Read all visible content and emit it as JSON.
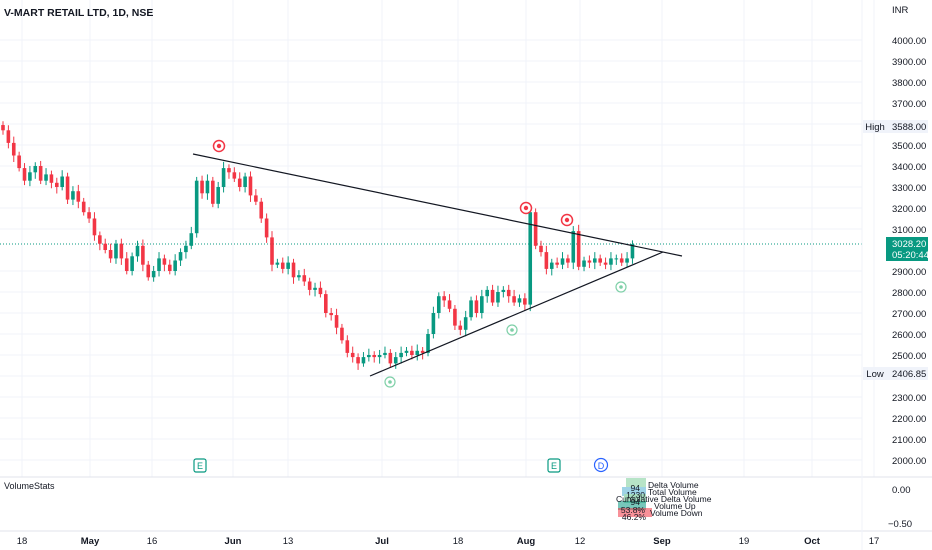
{
  "header": {
    "symbol_title": "V-MART RETAIL LTD, 1D, NSE",
    "currency": "INR"
  },
  "price_axis": {
    "ticks": [
      "4000.00",
      "3900.00",
      "3800.00",
      "3700.00",
      "3600.00",
      "3500.00",
      "3400.00",
      "3300.00",
      "3200.00",
      "3100.00",
      "2900.00",
      "2800.00",
      "2700.00",
      "2600.00",
      "2500.00",
      "2400.00",
      "2300.00",
      "2200.00",
      "2100.00",
      "2000.00"
    ],
    "tick_values": [
      4000,
      3900,
      3800,
      3700,
      3600,
      3500,
      3400,
      3300,
      3200,
      3100,
      2900,
      2800,
      2700,
      2600,
      2500,
      2400,
      2300,
      2200,
      2100,
      2000
    ],
    "high_label": "High",
    "high_value": "3588.00",
    "low_label": "Low",
    "low_value": "2406.85",
    "last_price": "3028.20",
    "countdown": "05:20:44"
  },
  "time_axis": {
    "labels": [
      "18",
      "May",
      "16",
      "Jun",
      "13",
      "Jul",
      "18",
      "Aug",
      "12",
      "Sep",
      "19",
      "Oct",
      "17"
    ],
    "bold": [
      "May",
      "Jun",
      "Jul",
      "Aug",
      "Sep",
      "Oct"
    ]
  },
  "events": {
    "earnings_1": "E",
    "earnings_2": "E",
    "dividend": "D"
  },
  "volume_stats": {
    "title": "VolumeStats",
    "axis_top": "0.00",
    "axis_bottom": "−0.50",
    "rows": [
      {
        "value": "94",
        "label": "Delta Volume"
      },
      {
        "value": "1230",
        "label": "Total Volume"
      },
      {
        "value": "94",
        "label": "Cumulative Delta Volume"
      },
      {
        "value": "53.8%",
        "label": "Volume Up"
      },
      {
        "value": "46.2%",
        "label": "Volume Down"
      }
    ]
  },
  "colors": {
    "up": "#089981",
    "down": "#f23645",
    "trendline": "#131722",
    "last_price_bg": "#089981",
    "grid": "#f0f3fa"
  },
  "chart_data": {
    "type": "candlestick",
    "title": "V-MART RETAIL LTD, 1D, NSE",
    "ylabel": "INR",
    "ylim": [
      1950,
      4080
    ],
    "x_labels": [
      "18",
      "May",
      "16",
      "Jun",
      "13",
      "Jul",
      "18",
      "Aug",
      "12",
      "Sep",
      "19",
      "Oct",
      "17"
    ],
    "candle_closes_approx": [
      3570,
      3510,
      3450,
      3390,
      3330,
      3370,
      3400,
      3330,
      3360,
      3320,
      3300,
      3350,
      3240,
      3280,
      3230,
      3180,
      3150,
      3070,
      3030,
      3000,
      2960,
      3030,
      2960,
      2900,
      2970,
      3020,
      2930,
      2870,
      2900,
      2960,
      2930,
      2900,
      2950,
      2990,
      3020,
      3080,
      3330,
      3270,
      3330,
      3220,
      3300,
      3390,
      3370,
      3340,
      3300,
      3350,
      3260,
      3230,
      3150,
      3060,
      2930,
      2940,
      2910,
      2940,
      2870,
      2880,
      2850,
      2810,
      2820,
      2790,
      2700,
      2690,
      2630,
      2570,
      2510,
      2490,
      2460,
      2490,
      2500,
      2490,
      2500,
      2510,
      2460,
      2490,
      2510,
      2520,
      2500,
      2520,
      2510,
      2600,
      2700,
      2780,
      2760,
      2720,
      2640,
      2620,
      2680,
      2760,
      2700,
      2780,
      2810,
      2750,
      2800,
      2810,
      2780,
      2750,
      2770,
      2740,
      3180,
      3020,
      2990,
      2910,
      2940,
      2930,
      2960,
      2940,
      3090,
      2920,
      2950,
      2940,
      2960,
      2940,
      2930,
      2960,
      2960,
      2940,
      2960,
      3028
    ],
    "swing_highs": [
      3430,
      3180,
      3170,
      3140
    ],
    "swing_lows": [
      2390,
      2600,
      2820
    ],
    "trendlines": [
      {
        "name": "descending resistance",
        "from": 3480,
        "to": 2980
      },
      {
        "name": "ascending support",
        "from": 2410,
        "to": 2995
      }
    ],
    "high": 3588.0,
    "low": 2406.85,
    "last": 3028.2
  }
}
